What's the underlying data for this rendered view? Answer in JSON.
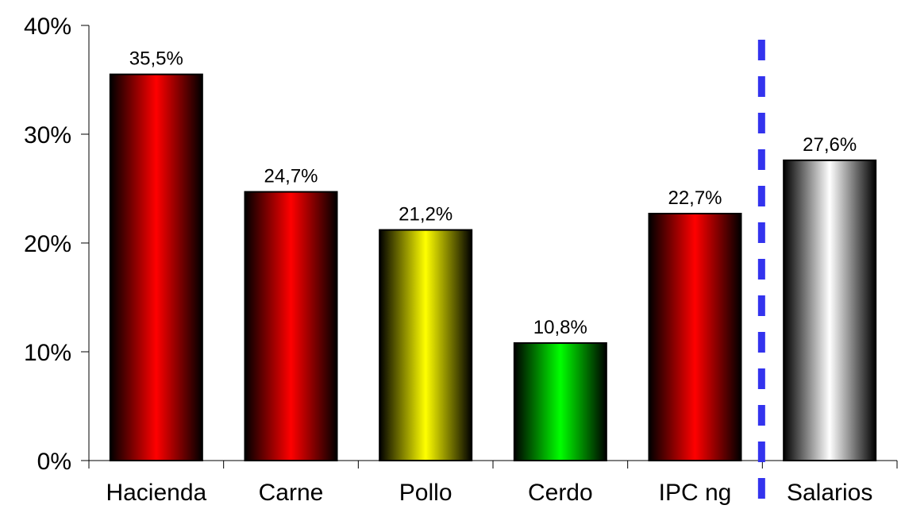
{
  "chart_data": {
    "type": "bar",
    "title": "",
    "xlabel": "",
    "ylabel": "",
    "categories": [
      "Hacienda",
      "Carne",
      "Pollo",
      "Cerdo",
      "IPC ng",
      "Salarios"
    ],
    "values": [
      35.5,
      24.7,
      21.2,
      10.8,
      22.7,
      27.6
    ],
    "data_labels": [
      "35,5%",
      "24,7%",
      "21,2%",
      "10,8%",
      "22,7%",
      "27,6%"
    ],
    "bar_colors": [
      "red",
      "red",
      "yellow",
      "green",
      "red",
      "silver"
    ],
    "ylim": [
      0,
      40
    ],
    "yticks": [
      0,
      10,
      20,
      30,
      40
    ],
    "ytick_labels": [
      "0%",
      "10%",
      "20%",
      "30%",
      "40%"
    ],
    "grid": false,
    "legend": "none",
    "separator": {
      "style": "dashed",
      "color": "#3333ee",
      "between": [
        "IPC ng",
        "Salarios"
      ]
    }
  },
  "colors": {
    "red": [
      "#000000",
      "#ff0000",
      "#000000"
    ],
    "yellow": [
      "#000000",
      "#ffff00",
      "#000000"
    ],
    "green": [
      "#000000",
      "#00ff00",
      "#000000"
    ],
    "silver": [
      "#000000",
      "#ffffff",
      "#000000"
    ],
    "axis": "#000000"
  }
}
